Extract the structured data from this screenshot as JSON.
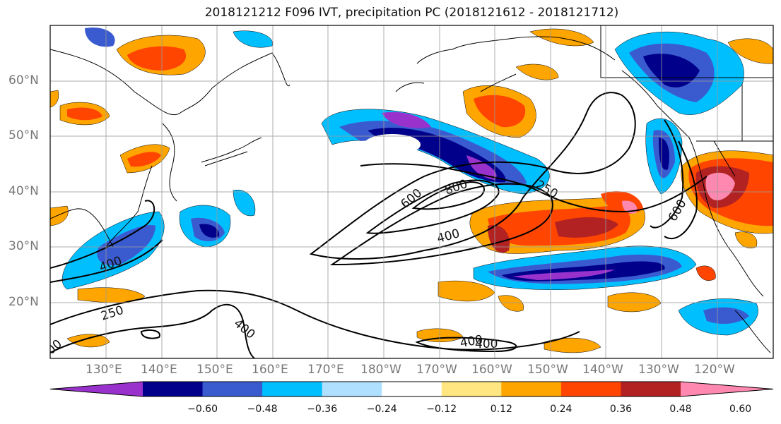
{
  "title": "2018121212 F096 IVT, precipitation PC (2018121612 - 2018121712)",
  "lat_labels": [
    "60°N",
    "50°N",
    "40°N",
    "30°N",
    "20°N"
  ],
  "lon_labels": [
    "130°E",
    "140°E",
    "150°E",
    "160°E",
    "170°E",
    "180°W",
    "170°W",
    "160°W",
    "150°W",
    "140°W",
    "130°W",
    "120°W"
  ],
  "contour_labels": [
    "600",
    "800",
    "250",
    "400",
    "400",
    "250",
    "400",
    "400",
    "400",
    "600",
    "00"
  ],
  "colorbar": {
    "tick_labels": [
      "−0.60",
      "−0.48",
      "−0.36",
      "−0.24",
      "−0.12",
      "0.12",
      "0.24",
      "0.36",
      "0.48",
      "0.60"
    ],
    "colors": [
      "#9932cc",
      "#00008b",
      "#3a5bd0",
      "#00bfff",
      "#b0e0ff",
      "#ffffff",
      "#ffe680",
      "#ffa500",
      "#ff4500",
      "#b22222",
      "#ff88b0"
    ]
  }
}
